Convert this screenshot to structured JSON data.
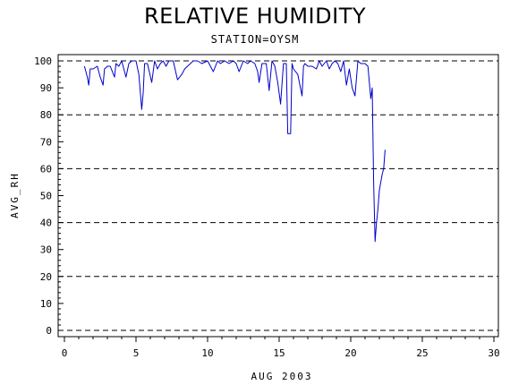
{
  "chart_data": {
    "type": "line",
    "title": "RELATIVE HUMIDITY",
    "subtitle": "STATION=OYSM",
    "xlabel": "AUG 2003",
    "ylabel": "AVG_RH",
    "xlim": [
      0,
      30
    ],
    "ylim": [
      0,
      100
    ],
    "x_ticks": [
      0,
      5,
      10,
      15,
      20,
      25,
      30
    ],
    "y_ticks": [
      0,
      10,
      20,
      30,
      40,
      50,
      60,
      70,
      80,
      90,
      100
    ],
    "reference_lines": [
      0,
      20,
      40,
      60,
      80,
      100
    ],
    "grid": false,
    "line_color": "#0000cc",
    "series": [
      {
        "x": [
          1.4,
          1.6,
          1.7,
          1.8,
          2.0,
          2.3,
          2.5,
          2.7,
          2.8,
          3.0,
          3.2,
          3.5,
          3.6,
          3.8,
          4.0,
          4.3,
          4.5,
          4.7,
          5.0,
          5.2,
          5.4,
          5.5,
          5.6,
          5.8,
          6.1,
          6.3,
          6.5,
          6.7,
          6.9,
          7.1,
          7.3,
          7.6,
          7.9,
          8.2,
          8.4,
          8.6,
          9.0,
          9.3,
          9.6,
          10.0,
          10.4,
          10.7,
          10.9,
          11.2,
          11.5,
          11.8,
          12.0,
          12.2,
          12.5,
          12.8,
          13.0,
          13.3,
          13.5,
          13.6,
          13.8,
          14.1,
          14.3,
          14.5,
          14.7,
          14.9,
          15.1,
          15.3,
          15.5,
          15.6,
          15.8,
          15.9,
          16.0,
          16.3,
          16.6,
          16.7,
          16.8,
          17.0,
          17.3,
          17.6,
          17.8,
          18.0,
          18.3,
          18.5,
          18.7,
          18.9,
          19.1,
          19.3,
          19.5,
          19.7,
          19.9,
          20.1,
          20.3,
          20.5,
          20.7,
          21.0,
          21.2,
          21.4,
          21.5,
          21.6,
          21.7,
          21.8,
          21.9,
          22.0,
          22.1,
          22.2,
          22.3,
          22.4
        ],
        "y": [
          98,
          94,
          91,
          97,
          97,
          98,
          94,
          91,
          97,
          98,
          98,
          94,
          99,
          98,
          100,
          94,
          99,
          100,
          100,
          95,
          82,
          88,
          99,
          99,
          92,
          100,
          97,
          99,
          100,
          98,
          100,
          100,
          93,
          95,
          97,
          98,
          100,
          100,
          99,
          100,
          96,
          100,
          99,
          100,
          99,
          100,
          99,
          96,
          100,
          99,
          100,
          99,
          96,
          92,
          99,
          99,
          89,
          100,
          98,
          92,
          84,
          99,
          99,
          73,
          73,
          99,
          97,
          95,
          87,
          98,
          99,
          98,
          98,
          97,
          100,
          98,
          100,
          97,
          99,
          100,
          99,
          96,
          100,
          91,
          97,
          90,
          87,
          100,
          99,
          99,
          98,
          86,
          90,
          55,
          33,
          40,
          45,
          52,
          55,
          58,
          60,
          67
        ]
      }
    ]
  }
}
